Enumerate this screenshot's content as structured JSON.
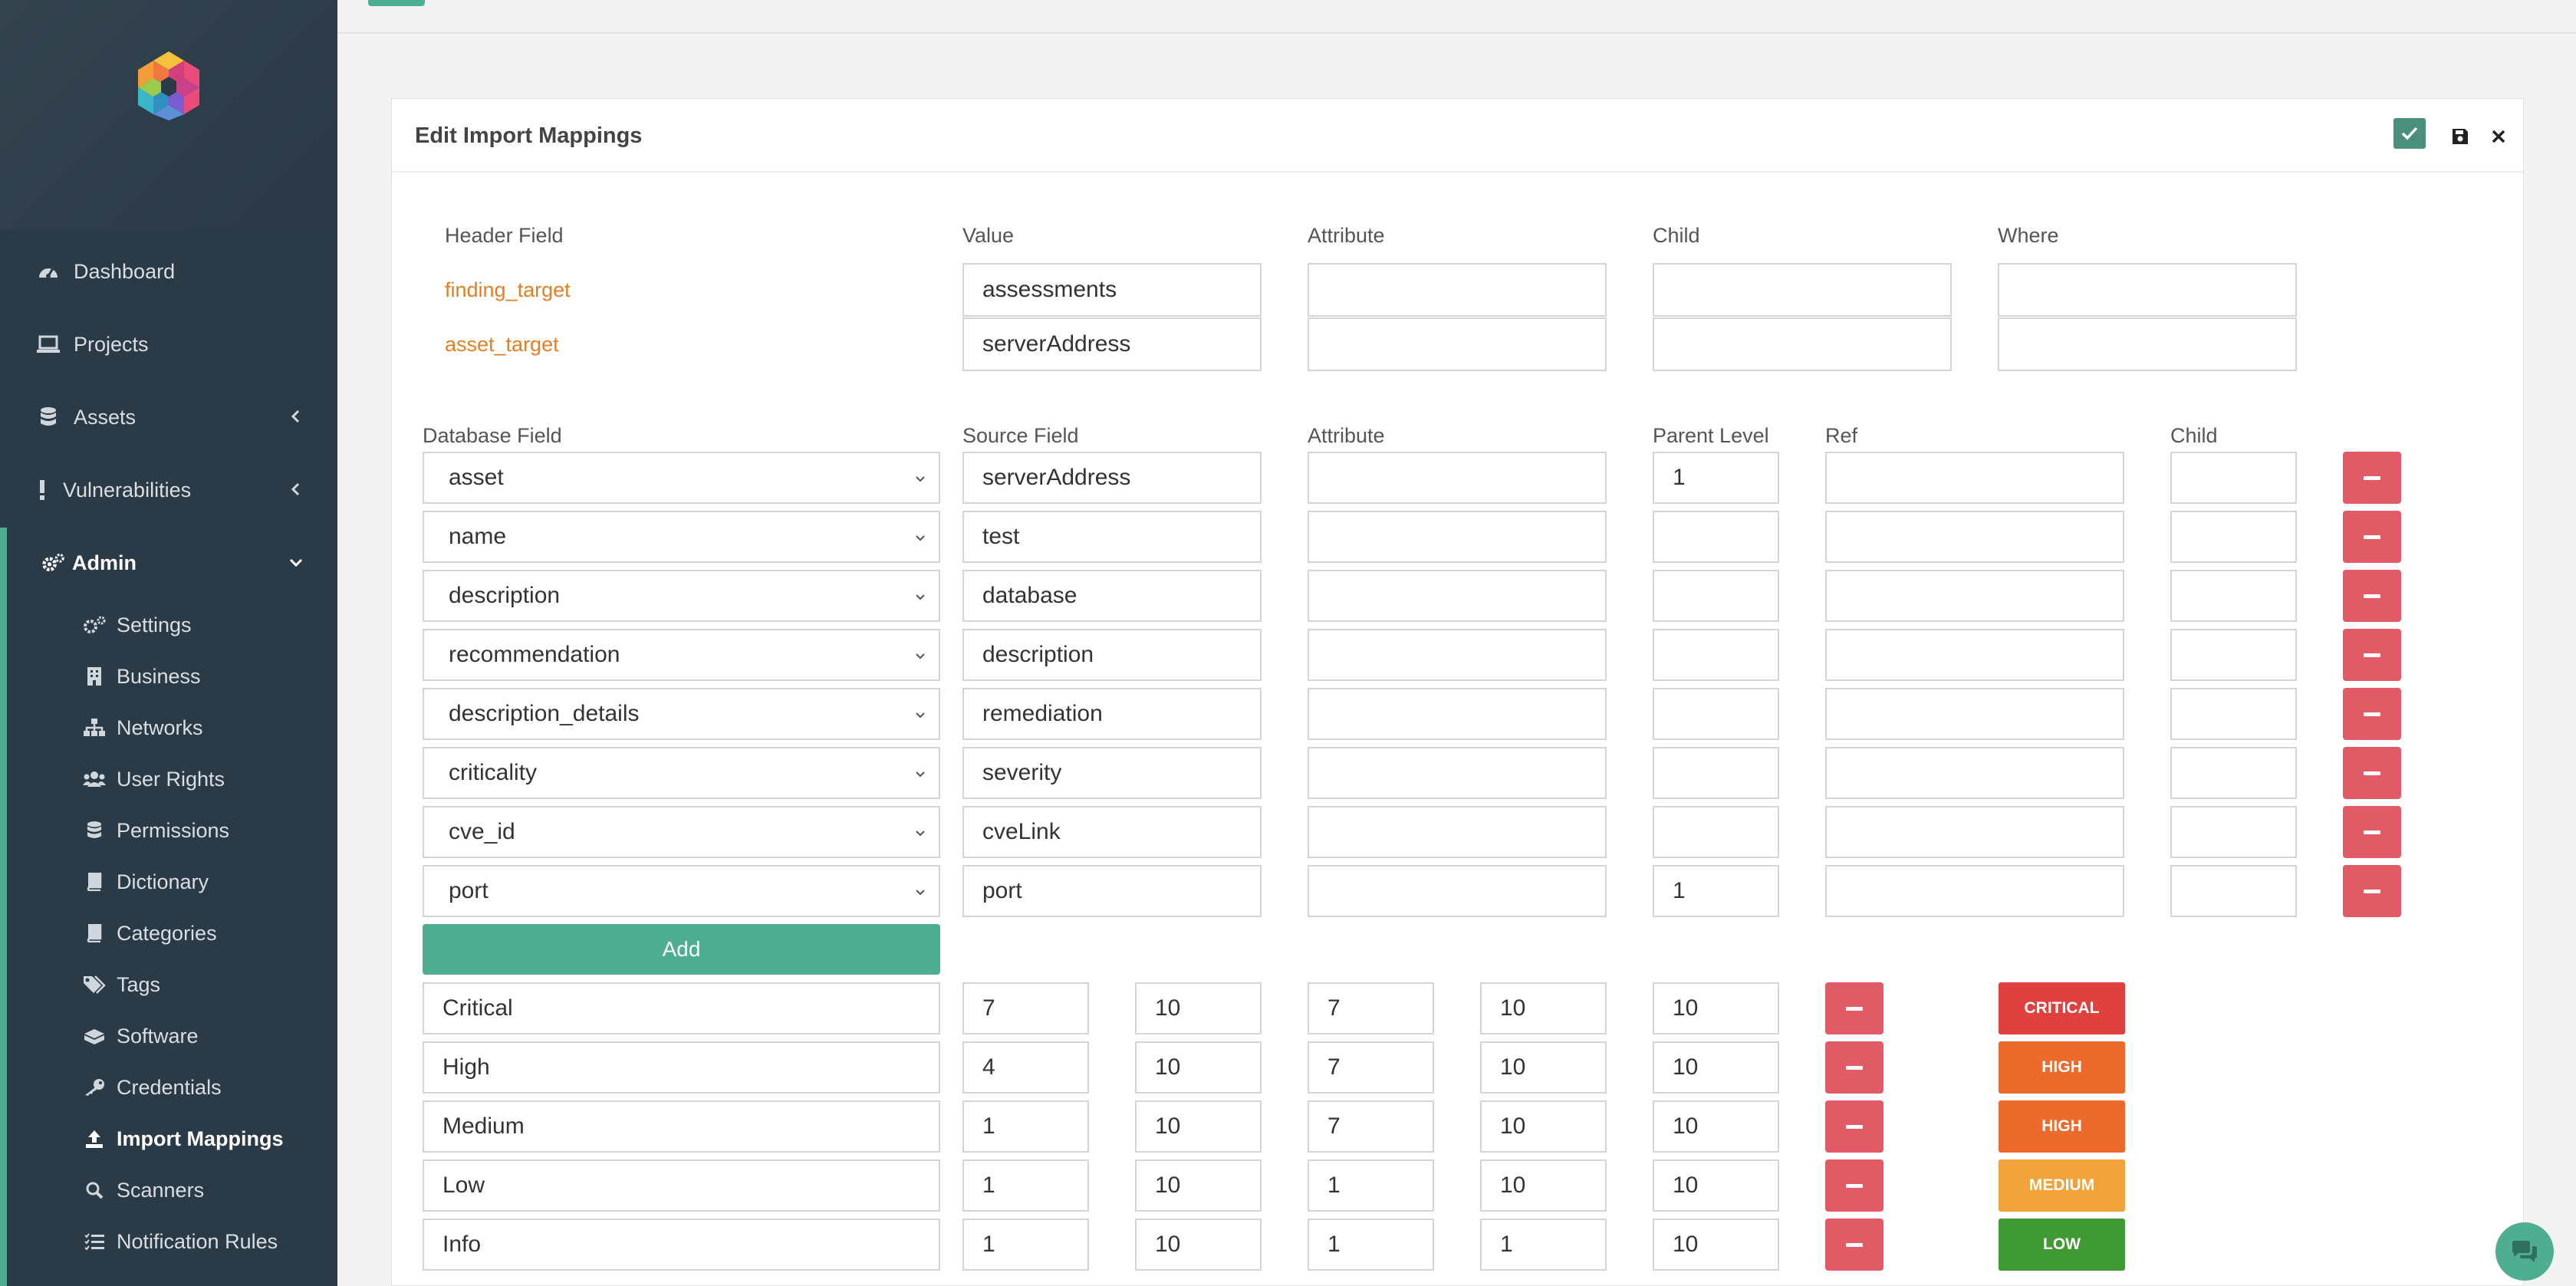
{
  "sidebar": {
    "nav": [
      {
        "label": "Dashboard",
        "icon": "tachometer-icon"
      },
      {
        "label": "Projects",
        "icon": "laptop-icon"
      },
      {
        "label": "Assets",
        "icon": "database-icon"
      },
      {
        "label": "Vulnerabilities",
        "icon": "exclamation-icon"
      },
      {
        "label": "Admin",
        "icon": "cogs-icon"
      }
    ],
    "admin_items": [
      {
        "label": "Settings",
        "icon": "cogs-icon"
      },
      {
        "label": "Business",
        "icon": "building-icon"
      },
      {
        "label": "Networks",
        "icon": "sitemap-icon"
      },
      {
        "label": "User Rights",
        "icon": "users-icon"
      },
      {
        "label": "Permissions",
        "icon": "database-icon"
      },
      {
        "label": "Dictionary",
        "icon": "book-icon"
      },
      {
        "label": "Categories",
        "icon": "book-icon"
      },
      {
        "label": "Tags",
        "icon": "tags-icon"
      },
      {
        "label": "Software",
        "icon": "boxes-icon"
      },
      {
        "label": "Credentials",
        "icon": "key-icon"
      },
      {
        "label": "Import Mappings",
        "icon": "upload-icon"
      },
      {
        "label": "Scanners",
        "icon": "search-icon"
      },
      {
        "label": "Notification Rules",
        "icon": "list-icon"
      }
    ]
  },
  "panel": {
    "title": "Edit Import Mappings",
    "header_fields": {
      "labels": [
        "Header Field",
        "Value",
        "Attribute",
        "Child",
        "Where"
      ],
      "rows": [
        {
          "name": "finding_target",
          "value": "assessments",
          "attribute": "",
          "child": "",
          "where": ""
        },
        {
          "name": "asset_target",
          "value": "serverAddress",
          "attribute": "",
          "child": "",
          "where": ""
        }
      ]
    },
    "mappings": {
      "labels": [
        "Database Field",
        "Source Field",
        "Attribute",
        "Parent Level",
        "Ref",
        "Child"
      ],
      "rows": [
        {
          "db": "asset",
          "source": "serverAddress",
          "attribute": "",
          "parent": "1",
          "ref": "",
          "child": ""
        },
        {
          "db": "name",
          "source": "test",
          "attribute": "",
          "parent": "",
          "ref": "",
          "child": ""
        },
        {
          "db": "description",
          "source": "database",
          "attribute": "",
          "parent": "",
          "ref": "",
          "child": ""
        },
        {
          "db": "recommendation",
          "source": "description",
          "attribute": "",
          "parent": "",
          "ref": "",
          "child": ""
        },
        {
          "db": "description_details",
          "source": "remediation",
          "attribute": "",
          "parent": "",
          "ref": "",
          "child": ""
        },
        {
          "db": "criticality",
          "source": "severity",
          "attribute": "",
          "parent": "",
          "ref": "",
          "child": ""
        },
        {
          "db": "cve_id",
          "source": "cveLink",
          "attribute": "",
          "parent": "",
          "ref": "",
          "child": ""
        },
        {
          "db": "port",
          "source": "port",
          "attribute": "",
          "parent": "1",
          "ref": "",
          "child": ""
        }
      ],
      "add_label": "Add"
    },
    "severity": [
      {
        "name": "Critical",
        "v": [
          "7",
          "10",
          "7",
          "10",
          "10"
        ],
        "badge": "CRITICAL",
        "color": "#e0413e"
      },
      {
        "name": "High",
        "v": [
          "4",
          "10",
          "7",
          "10",
          "10"
        ],
        "badge": "HIGH",
        "color": "#ec6a2c"
      },
      {
        "name": "Medium",
        "v": [
          "1",
          "10",
          "7",
          "10",
          "10"
        ],
        "badge": "HIGH",
        "color": "#ec6a2c"
      },
      {
        "name": "Low",
        "v": [
          "1",
          "10",
          "1",
          "10",
          "10"
        ],
        "badge": "MEDIUM",
        "color": "#f1a23a"
      },
      {
        "name": "Info",
        "v": [
          "1",
          "10",
          "1",
          "1",
          "10"
        ],
        "badge": "LOW",
        "color": "#3f9a34"
      }
    ]
  }
}
